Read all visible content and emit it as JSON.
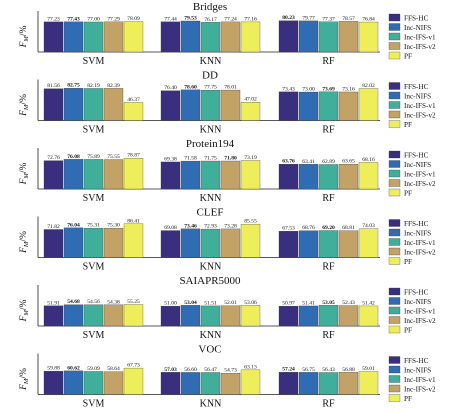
{
  "chart_data": [
    {
      "type": "bar",
      "title": "Bridges",
      "ylabel": "F_M/%",
      "categories": [
        "SVM",
        "KNN",
        "RF"
      ],
      "ylim": [
        0,
        100
      ],
      "bold_best": [
        1,
        1,
        0
      ],
      "series": [
        {
          "name": "FFS-HC",
          "values": [
            77.23,
            77.44,
            80.23
          ]
        },
        {
          "name": "Inc-NIFS",
          "values": [
            77.43,
            79.53,
            79.77
          ]
        },
        {
          "name": "Inc-IFS-v1",
          "values": [
            77.0,
            76.17,
            77.37
          ]
        },
        {
          "name": "Inc-IFS-v2",
          "values": [
            77.29,
            77.24,
            78.57
          ]
        },
        {
          "name": "PF",
          "values": [
            78.09,
            77.16,
            76.84
          ]
        }
      ]
    },
    {
      "type": "bar",
      "title": "DD",
      "ylabel": "F_M/%",
      "categories": [
        "SVM",
        "KNN",
        "RF"
      ],
      "ylim": [
        0,
        100
      ],
      "bold_best": [
        1,
        1,
        2
      ],
      "series": [
        {
          "name": "FFS-HC",
          "values": [
            81.56,
            76.4,
            73.43
          ]
        },
        {
          "name": "Inc-NIFS",
          "values": [
            82.75,
            78.6,
            73.0
          ]
        },
        {
          "name": "Inc-IFS-v1",
          "values": [
            82.19,
            77.75,
            73.69
          ]
        },
        {
          "name": "Inc-IFS-v2",
          "values": [
            82.39,
            78.01,
            73.16
          ]
        },
        {
          "name": "PF",
          "values": [
            46.37,
            47.02,
            82.02
          ]
        }
      ]
    },
    {
      "type": "bar",
      "title": "Protein194",
      "ylabel": "F_M/%",
      "categories": [
        "SVM",
        "KNN",
        "RF"
      ],
      "ylim": [
        0,
        100
      ],
      "bold_best": [
        1,
        3,
        0
      ],
      "series": [
        {
          "name": "FFS-HC",
          "values": [
            72.76,
            69.38,
            63.76
          ]
        },
        {
          "name": "Inc-NIFS",
          "values": [
            76.08,
            71.58,
            63.41
          ]
        },
        {
          "name": "Inc-IFS-v1",
          "values": [
            75.89,
            71.75,
            62.89
          ]
        },
        {
          "name": "Inc-IFS-v2",
          "values": [
            75.55,
            71.8,
            63.65
          ]
        },
        {
          "name": "PF",
          "values": [
            78.87,
            73.19,
            68.16
          ]
        }
      ]
    },
    {
      "type": "bar",
      "title": "CLEF",
      "ylabel": "F_M/%",
      "categories": [
        "SVM",
        "KNN",
        "RF"
      ],
      "ylim": [
        0,
        100
      ],
      "bold_best": [
        1,
        1,
        2
      ],
      "series": [
        {
          "name": "FFS-HC",
          "values": [
            71.82,
            69.08,
            67.53
          ]
        },
        {
          "name": "Inc-NIFS",
          "values": [
            76.04,
            73.46,
            68.76
          ]
        },
        {
          "name": "Inc-IFS-v1",
          "values": [
            75.31,
            72.93,
            69.2
          ]
        },
        {
          "name": "Inc-IFS-v2",
          "values": [
            75.3,
            73.28,
            68.81
          ]
        },
        {
          "name": "PF",
          "values": [
            86.41,
            85.55,
            74.03
          ]
        }
      ]
    },
    {
      "type": "bar",
      "title": "SAIAPR5000",
      "ylabel": "F_M/%",
      "categories": [
        "SVM",
        "KNN",
        "RF"
      ],
      "ylim": [
        0,
        100
      ],
      "bold_best": [
        1,
        1,
        2
      ],
      "series": [
        {
          "name": "FFS-HC",
          "values": [
            51.91,
            51.0,
            50.97
          ]
        },
        {
          "name": "Inc-NIFS",
          "values": [
            54.68,
            53.04,
            51.41
          ]
        },
        {
          "name": "Inc-IFS-v1",
          "values": [
            54.56,
            51.51,
            53.05
          ]
        },
        {
          "name": "Inc-IFS-v2",
          "values": [
            54.38,
            52.01,
            52.43
          ]
        },
        {
          "name": "PF",
          "values": [
            55.25,
            53.06,
            51.42
          ]
        }
      ]
    },
    {
      "type": "bar",
      "title": "VOC",
      "ylabel": "F_M/%",
      "categories": [
        "SVM",
        "KNN",
        "RF"
      ],
      "ylim": [
        0,
        100
      ],
      "bold_best": [
        1,
        0,
        0
      ],
      "series": [
        {
          "name": "FFS-HC",
          "values": [
            59.88,
            57.03,
            57.24
          ]
        },
        {
          "name": "Inc-NIFS",
          "values": [
            60.62,
            56.6,
            56.75
          ]
        },
        {
          "name": "Inc-IFS-v1",
          "values": [
            59.09,
            56.47,
            56.43
          ]
        },
        {
          "name": "Inc-IFS-v2",
          "values": [
            58.64,
            54.73,
            56.88
          ]
        },
        {
          "name": "PF",
          "values": [
            67.73,
            63.13,
            59.01
          ]
        }
      ]
    }
  ],
  "colors": {
    "FFS-HC": "#3a2e7e",
    "Inc-NIFS": "#2f6cb4",
    "Inc-IFS-v1": "#3fae9a",
    "Inc-IFS-v2": "#c2a266",
    "PF": "#eeee5a"
  }
}
